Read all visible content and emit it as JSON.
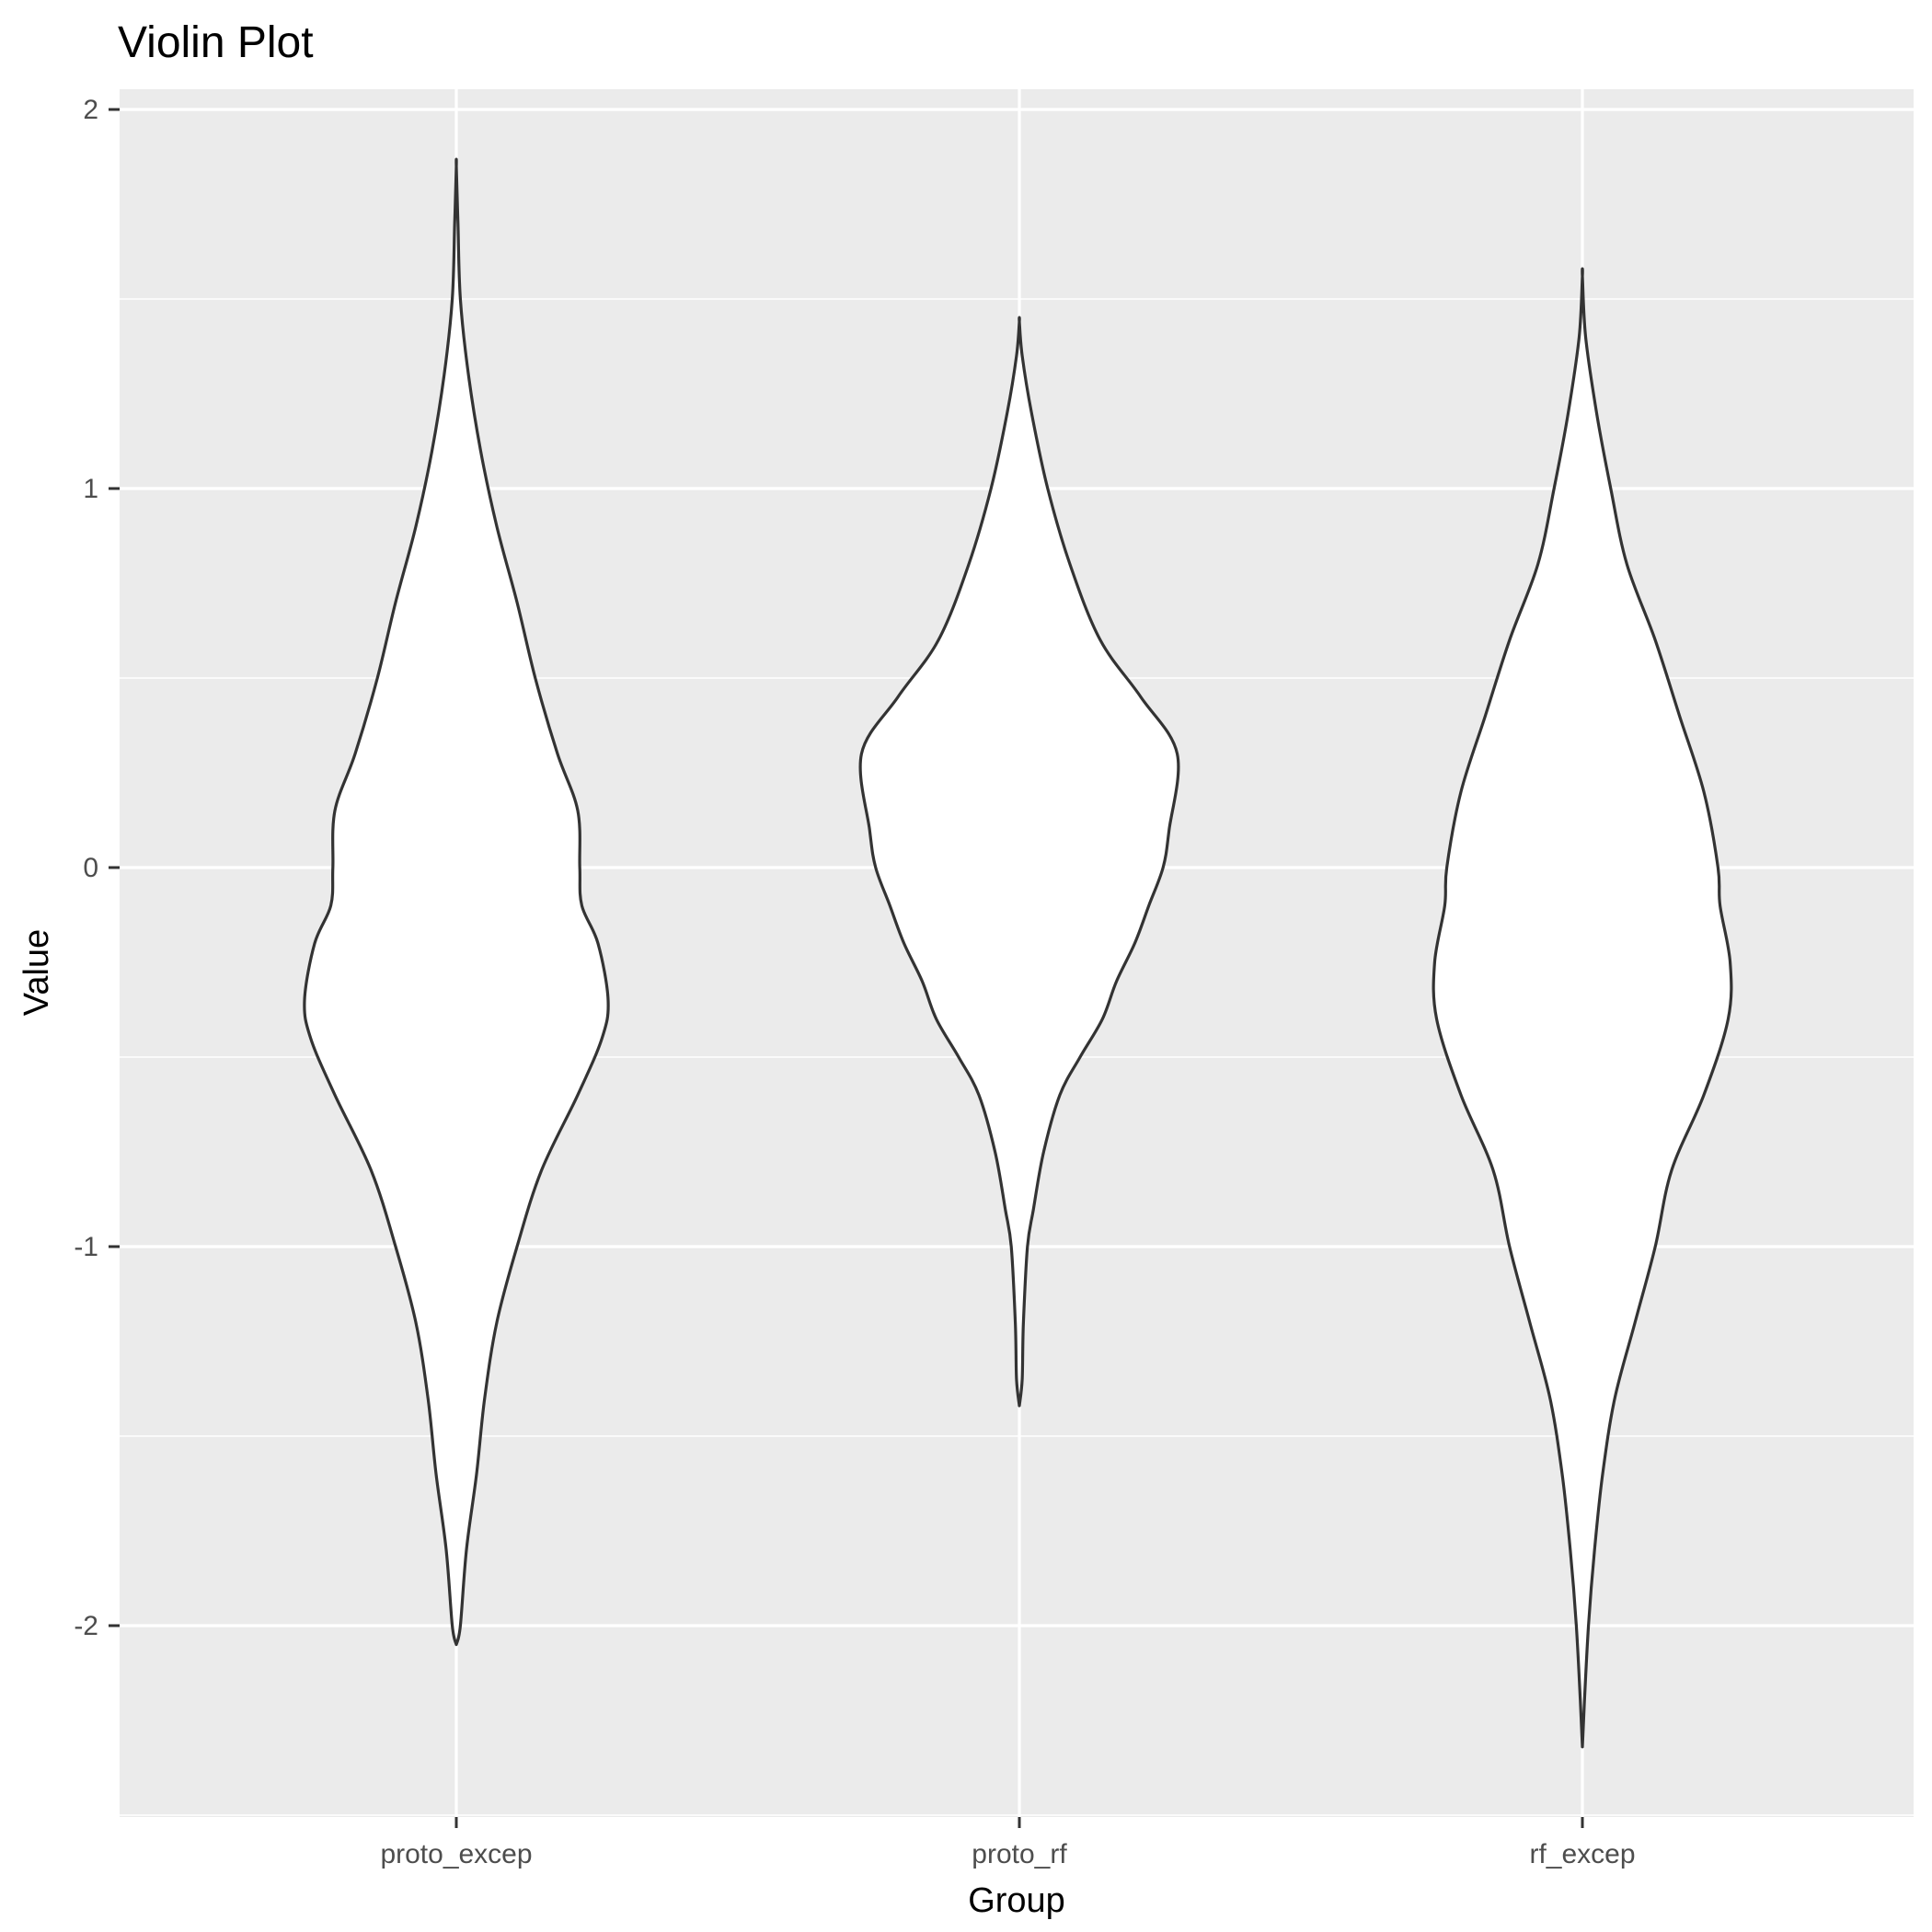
{
  "chart_data": {
    "type": "violin",
    "title": "Violin Plot",
    "xlabel": "Group",
    "ylabel": "Value",
    "categories": [
      "proto_excep",
      "proto_rf",
      "rf_excep"
    ],
    "ylim": [
      -2.5,
      2.06
    ],
    "y_ticks": [
      -2,
      -1,
      0,
      1,
      2
    ],
    "y_tick_labels": [
      "-2",
      "-1",
      "0",
      "1",
      "2"
    ],
    "grid": true,
    "colors": {
      "panel": "#ebebeb",
      "grid": "#ffffff",
      "violin_fill": "#ffffff",
      "violin_stroke": "#333333"
    },
    "series": [
      {
        "category": "proto_excep",
        "min": -2.05,
        "max": 1.85,
        "profile": [
          [
            -2.05,
            0.0
          ],
          [
            -2.0,
            0.01
          ],
          [
            -1.8,
            0.025
          ],
          [
            -1.6,
            0.05
          ],
          [
            -1.4,
            0.07
          ],
          [
            -1.2,
            0.1
          ],
          [
            -1.0,
            0.15
          ],
          [
            -0.8,
            0.21
          ],
          [
            -0.6,
            0.3
          ],
          [
            -0.45,
            0.36
          ],
          [
            -0.35,
            0.375
          ],
          [
            -0.2,
            0.35
          ],
          [
            -0.1,
            0.31
          ],
          [
            0.0,
            0.305
          ],
          [
            0.15,
            0.3
          ],
          [
            0.3,
            0.25
          ],
          [
            0.5,
            0.195
          ],
          [
            0.7,
            0.15
          ],
          [
            0.9,
            0.1
          ],
          [
            1.1,
            0.06
          ],
          [
            1.3,
            0.03
          ],
          [
            1.5,
            0.01
          ],
          [
            1.7,
            0.004
          ],
          [
            1.85,
            0.0
          ]
        ]
      },
      {
        "category": "proto_rf",
        "min": -1.42,
        "max": 1.44,
        "profile": [
          [
            -1.42,
            0.0
          ],
          [
            -1.35,
            0.007
          ],
          [
            -1.2,
            0.01
          ],
          [
            -1.0,
            0.02
          ],
          [
            -0.9,
            0.035
          ],
          [
            -0.75,
            0.06
          ],
          [
            -0.6,
            0.1
          ],
          [
            -0.5,
            0.15
          ],
          [
            -0.4,
            0.205
          ],
          [
            -0.3,
            0.24
          ],
          [
            -0.2,
            0.285
          ],
          [
            -0.1,
            0.32
          ],
          [
            0.0,
            0.355
          ],
          [
            0.1,
            0.37
          ],
          [
            0.3,
            0.39
          ],
          [
            0.45,
            0.3
          ],
          [
            0.6,
            0.2
          ],
          [
            0.8,
            0.125
          ],
          [
            1.0,
            0.07
          ],
          [
            1.2,
            0.03
          ],
          [
            1.35,
            0.007
          ],
          [
            1.44,
            0.0
          ]
        ]
      },
      {
        "category": "rf_excep",
        "min": -2.32,
        "max": 1.56,
        "profile": [
          [
            -2.32,
            0.0
          ],
          [
            -2.2,
            0.005
          ],
          [
            -2.0,
            0.015
          ],
          [
            -1.8,
            0.03
          ],
          [
            -1.6,
            0.05
          ],
          [
            -1.4,
            0.08
          ],
          [
            -1.2,
            0.13
          ],
          [
            -1.0,
            0.18
          ],
          [
            -0.8,
            0.22
          ],
          [
            -0.6,
            0.3
          ],
          [
            -0.4,
            0.36
          ],
          [
            -0.25,
            0.365
          ],
          [
            -0.1,
            0.34
          ],
          [
            0.0,
            0.335
          ],
          [
            0.2,
            0.3
          ],
          [
            0.4,
            0.24
          ],
          [
            0.6,
            0.18
          ],
          [
            0.8,
            0.11
          ],
          [
            1.0,
            0.07
          ],
          [
            1.2,
            0.035
          ],
          [
            1.4,
            0.008
          ],
          [
            1.56,
            0.0
          ]
        ]
      }
    ]
  }
}
